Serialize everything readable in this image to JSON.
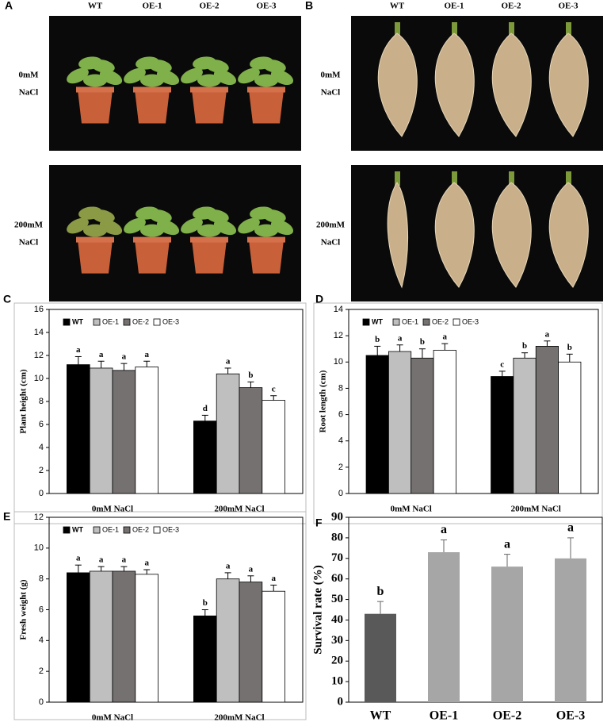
{
  "photos": [
    {
      "letter": "A",
      "columns": [
        "WT",
        "OE-1",
        "OE-2",
        "OE-3"
      ],
      "rows": [
        [
          "0mM",
          "NaCl"
        ],
        [
          "200mM",
          "NaCl"
        ]
      ]
    },
    {
      "letter": "B",
      "columns": [
        "WT",
        "OE-1",
        "OE-2",
        "OE-3"
      ],
      "rows": [
        [
          "0mM",
          "NaCl"
        ],
        [
          "200mM",
          "NaCl"
        ]
      ]
    }
  ],
  "chart_data": [
    {
      "type": "bar",
      "letter": "C",
      "ylabel": "Plant height (cm)",
      "categories": [
        "0mM NaCl",
        "200mM NaCl"
      ],
      "ylim": [
        0,
        16
      ],
      "yticks": [
        0,
        2,
        4,
        6,
        8,
        10,
        12,
        14,
        16
      ],
      "legend": "upper left",
      "series": [
        {
          "name": "WT",
          "color": "#000000",
          "values": [
            11.2,
            6.3
          ],
          "errors": [
            0.7,
            0.5
          ],
          "significance": [
            "a",
            "d"
          ]
        },
        {
          "name": "OE-1",
          "color": "#bfbfbf",
          "values": [
            10.9,
            10.4
          ],
          "errors": [
            0.6,
            0.5
          ],
          "significance": [
            "a",
            "a"
          ]
        },
        {
          "name": "OE-2",
          "color": "#767171",
          "values": [
            10.7,
            9.2
          ],
          "errors": [
            0.6,
            0.5
          ],
          "significance": [
            "a",
            "b"
          ]
        },
        {
          "name": "OE-3",
          "color": "#ffffff",
          "values": [
            11.0,
            8.1
          ],
          "errors": [
            0.5,
            0.4
          ],
          "significance": [
            "a",
            "c"
          ]
        }
      ]
    },
    {
      "type": "bar",
      "letter": "D",
      "ylabel": "Root length (cm)",
      "categories": [
        "0mM NaCl",
        "200mM NaCl"
      ],
      "ylim": [
        0,
        14
      ],
      "yticks": [
        0,
        2,
        4,
        6,
        8,
        10,
        12,
        14
      ],
      "legend": "upper left",
      "series": [
        {
          "name": "WT",
          "color": "#000000",
          "values": [
            10.5,
            8.9
          ],
          "errors": [
            0.7,
            0.4
          ],
          "significance": [
            "b",
            "c"
          ]
        },
        {
          "name": "OE-1",
          "color": "#bfbfbf",
          "values": [
            10.8,
            10.3
          ],
          "errors": [
            0.5,
            0.4
          ],
          "significance": [
            "a",
            "b"
          ]
        },
        {
          "name": "OE-2",
          "color": "#767171",
          "values": [
            10.3,
            11.2
          ],
          "errors": [
            0.7,
            0.4
          ],
          "significance": [
            "b",
            "a"
          ]
        },
        {
          "name": "OE-3",
          "color": "#ffffff",
          "values": [
            10.9,
            10.0
          ],
          "errors": [
            0.5,
            0.6
          ],
          "significance": [
            "a",
            "b"
          ]
        }
      ]
    },
    {
      "type": "bar",
      "letter": "E",
      "ylabel": "Fresh weight (g)",
      "categories": [
        "0mM NaCl",
        "200mM NaCl"
      ],
      "ylim": [
        0,
        12
      ],
      "yticks": [
        0,
        2,
        4,
        6,
        8,
        10,
        12
      ],
      "legend": "upper left",
      "series": [
        {
          "name": "WT",
          "color": "#000000",
          "values": [
            8.4,
            5.6
          ],
          "errors": [
            0.5,
            0.4
          ],
          "significance": [
            "a",
            "b"
          ]
        },
        {
          "name": "OE-1",
          "color": "#bfbfbf",
          "values": [
            8.5,
            8.0
          ],
          "errors": [
            0.3,
            0.4
          ],
          "significance": [
            "a",
            "a"
          ]
        },
        {
          "name": "OE-2",
          "color": "#767171",
          "values": [
            8.5,
            7.8
          ],
          "errors": [
            0.3,
            0.4
          ],
          "significance": [
            "a",
            "a"
          ]
        },
        {
          "name": "OE-3",
          "color": "#ffffff",
          "values": [
            8.3,
            7.2
          ],
          "errors": [
            0.3,
            0.4
          ],
          "significance": [
            "a",
            "a"
          ]
        }
      ]
    },
    {
      "type": "bar",
      "letter": "F",
      "ylabel": "Survival rate (%)",
      "categories": [
        "WT",
        "OE-1",
        "OE-2",
        "OE-3"
      ],
      "ylim": [
        0,
        90
      ],
      "yticks": [
        0,
        10,
        20,
        30,
        40,
        50,
        60,
        70,
        80,
        90
      ],
      "values": [
        43,
        73,
        66,
        70
      ],
      "errors": [
        6,
        6,
        6,
        10
      ],
      "significance": [
        "b",
        "a",
        "a",
        "a"
      ],
      "colors": [
        "#595959",
        "#a6a6a6",
        "#a6a6a6",
        "#a6a6a6"
      ]
    }
  ]
}
